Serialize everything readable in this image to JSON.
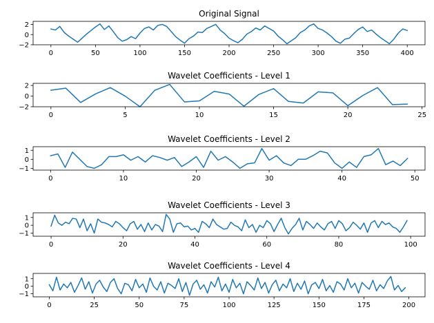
{
  "chart_data": [
    {
      "type": "line",
      "title": "Original Signal",
      "xlabel": "",
      "ylabel": "",
      "xlim": [
        -20,
        420
      ],
      "ylim": [
        -2,
        2.6
      ],
      "xticks": [
        0,
        50,
        100,
        150,
        200,
        250,
        300,
        350,
        400
      ],
      "yticks": [
        -2,
        0,
        2
      ],
      "grid": false,
      "series": [
        {
          "color": "#1f77b4",
          "x": [
            0,
            5,
            10,
            15,
            20,
            25,
            30,
            35,
            40,
            45,
            50,
            55,
            60,
            65,
            70,
            75,
            80,
            85,
            90,
            95,
            100,
            105,
            110,
            115,
            120,
            125,
            130,
            135,
            140,
            145,
            150,
            155,
            160,
            165,
            170,
            175,
            180,
            185,
            190,
            195,
            200,
            205,
            210,
            215,
            220,
            225,
            230,
            235,
            240,
            245,
            250,
            255,
            260,
            265,
            270,
            275,
            280,
            285,
            290,
            295,
            300,
            305,
            310,
            315,
            320,
            325,
            330,
            335,
            340,
            345,
            350,
            355,
            360,
            365,
            370,
            375,
            380,
            385,
            390,
            395,
            400
          ],
          "y": [
            1.1,
            0.9,
            1.6,
            0.4,
            -0.3,
            -0.9,
            -1.5,
            -0.7,
            0.1,
            0.8,
            1.5,
            2.1,
            1.0,
            1.7,
            0.6,
            -0.6,
            -1.3,
            -1.0,
            -0.4,
            -0.8,
            0.3,
            1.2,
            1.5,
            0.9,
            1.8,
            2.0,
            1.6,
            0.6,
            -0.4,
            -1.1,
            -1.7,
            -0.8,
            -0.3,
            0.5,
            0.4,
            1.2,
            1.6,
            2.0,
            0.9,
            0.2,
            -0.7,
            -1.2,
            -1.6,
            -0.9,
            0.1,
            0.6,
            1.3,
            0.9,
            1.7,
            1.2,
            0.7,
            -0.3,
            -1.0,
            -1.8,
            -1.2,
            -0.6,
            0.4,
            0.9,
            1.7,
            2.1,
            1.2,
            0.9,
            0.3,
            -0.4,
            -1.3,
            -1.7,
            -0.9,
            -0.7,
            0.2,
            1.0,
            1.5,
            0.6,
            0.9,
            0.1,
            -0.6,
            -1.2,
            -1.8,
            -0.9,
            0.3,
            1.1,
            0.8
          ]
        }
      ]
    },
    {
      "type": "line",
      "title": "Wavelet Coefficients - Level 1",
      "xlabel": "",
      "ylabel": "",
      "xlim": [
        -1.2,
        25.2
      ],
      "ylim": [
        -2,
        2.4
      ],
      "xticks": [
        0,
        5,
        10,
        15,
        20,
        25
      ],
      "yticks": [
        -2,
        0,
        2
      ],
      "grid": false,
      "series": [
        {
          "color": "#1f77b4",
          "x": [
            0,
            1,
            2,
            3,
            4,
            5,
            6,
            7,
            8,
            9,
            10,
            11,
            12,
            13,
            14,
            15,
            16,
            17,
            18,
            19,
            20,
            21,
            22,
            23,
            24
          ],
          "y": [
            1.1,
            1.5,
            -1.2,
            0.4,
            1.6,
            0.0,
            -2.0,
            1.1,
            2.2,
            -1.1,
            -0.9,
            0.9,
            0.4,
            -1.9,
            0.3,
            1.4,
            -1.0,
            -1.3,
            0.8,
            0.6,
            -1.8,
            0.1,
            1.6,
            -1.6,
            -1.5
          ]
        }
      ]
    },
    {
      "type": "line",
      "title": "Wavelet Coefficients - Level 2",
      "xlabel": "",
      "ylabel": "",
      "xlim": [
        -2.4,
        51.4
      ],
      "ylim": [
        -1.2,
        1.4
      ],
      "xticks": [
        0,
        10,
        20,
        30,
        40,
        50
      ],
      "yticks": [
        -1,
        0,
        1
      ],
      "grid": false,
      "series": [
        {
          "color": "#1f77b4",
          "x": [
            0,
            1,
            2,
            3,
            4,
            5,
            6,
            7,
            8,
            9,
            10,
            11,
            12,
            13,
            14,
            15,
            16,
            17,
            18,
            19,
            20,
            21,
            22,
            23,
            24,
            25,
            26,
            27,
            28,
            29,
            30,
            31,
            32,
            33,
            34,
            35,
            36,
            37,
            38,
            39,
            40,
            41,
            42,
            43,
            44,
            45,
            46,
            47,
            48,
            49
          ],
          "y": [
            0.4,
            0.6,
            -0.9,
            0.8,
            0.0,
            -0.8,
            -1.0,
            -0.6,
            0.3,
            0.3,
            0.5,
            -0.1,
            0.3,
            -0.3,
            0.4,
            0.2,
            -0.1,
            0.2,
            -0.8,
            -0.3,
            0.3,
            -0.9,
            0.9,
            -0.1,
            0.3,
            -0.3,
            -1.0,
            -0.5,
            -0.4,
            1.2,
            -0.1,
            0.4,
            -0.4,
            -0.7,
            0.0,
            0.0,
            0.4,
            0.9,
            0.7,
            -0.4,
            -1.0,
            -0.3,
            -0.9,
            0.3,
            0.5,
            1.2,
            -0.6,
            -0.2,
            -0.7,
            0.1
          ]
        }
      ]
    },
    {
      "type": "line",
      "title": "Wavelet Coefficients - Level 3",
      "xlabel": "",
      "ylabel": "",
      "xlim": [
        -5,
        104
      ],
      "ylim": [
        -1.4,
        1.6
      ],
      "xticks": [
        0,
        20,
        40,
        60,
        80,
        100
      ],
      "yticks": [
        -1,
        0,
        1
      ],
      "grid": false,
      "series": [
        {
          "color": "#1f77b4",
          "x": [
            0,
            1,
            2,
            3,
            4,
            5,
            6,
            7,
            8,
            9,
            10,
            11,
            12,
            13,
            14,
            15,
            16,
            17,
            18,
            19,
            20,
            21,
            22,
            23,
            24,
            25,
            26,
            27,
            28,
            29,
            30,
            31,
            32,
            33,
            34,
            35,
            36,
            37,
            38,
            39,
            40,
            41,
            42,
            43,
            44,
            45,
            46,
            47,
            48,
            49,
            50,
            51,
            52,
            53,
            54,
            55,
            56,
            57,
            58,
            59,
            60,
            61,
            62,
            63,
            64,
            65,
            66,
            67,
            68,
            69,
            70,
            71,
            72,
            73,
            74,
            75,
            76,
            77,
            78,
            79,
            80,
            81,
            82,
            83,
            84,
            85,
            86,
            87,
            88,
            89,
            90,
            91,
            92,
            93,
            94,
            95,
            96,
            97,
            98,
            99
          ],
          "y": [
            -0.1,
            1.3,
            0.3,
            0.0,
            0.4,
            0.2,
            0.9,
            0.8,
            -0.3,
            0.8,
            -0.7,
            0.2,
            -1.0,
            0.8,
            0.4,
            0.3,
            0.1,
            -0.2,
            0.5,
            0.2,
            -0.3,
            -0.7,
            0.2,
            0.5,
            -0.5,
            0.1,
            -0.8,
            0.3,
            -0.6,
            0.1,
            -0.1,
            -0.8,
            1.4,
            0.8,
            -0.9,
            0.2,
            0.3,
            -0.2,
            -0.1,
            -0.6,
            -0.4,
            -0.9,
            0.5,
            0.2,
            -0.3,
            0.8,
            0.1,
            -0.2,
            -0.5,
            -0.4,
            0.4,
            0.0,
            -0.2,
            -0.7,
            0.7,
            -0.3,
            0.1,
            -0.9,
            0.0,
            -0.3,
            0.6,
            0.2,
            -0.8,
            0.1,
            0.9,
            -0.3,
            -1.1,
            -0.4,
            0.1,
            0.9,
            -0.6,
            0.5,
            0.1,
            -0.4,
            0.3,
            -0.2,
            -0.6,
            0.2,
            0.5,
            -0.4,
            0.6,
            0.2,
            -0.7,
            -0.3,
            0.4,
            0.0,
            -0.5,
            0.3,
            -0.9,
            0.3,
            0.6,
            -0.3,
            0.5,
            0.1,
            0.3,
            -0.2,
            -0.4,
            -0.9,
            -0.2,
            0.6
          ]
        }
      ]
    },
    {
      "type": "line",
      "title": "Wavelet Coefficients - Level 4",
      "xlabel": "",
      "ylabel": "",
      "xlim": [
        -9,
        209
      ],
      "ylim": [
        -1.4,
        1.7
      ],
      "xticks": [
        0,
        25,
        50,
        75,
        100,
        125,
        150,
        175,
        200
      ],
      "yticks": [
        -1,
        0,
        1
      ],
      "grid": false,
      "series": [
        {
          "color": "#1f77b4",
          "x": [
            0,
            2,
            4,
            6,
            8,
            10,
            12,
            14,
            16,
            18,
            20,
            22,
            24,
            26,
            28,
            30,
            32,
            34,
            36,
            38,
            40,
            42,
            44,
            46,
            48,
            50,
            52,
            54,
            56,
            58,
            60,
            62,
            64,
            66,
            68,
            70,
            72,
            74,
            76,
            78,
            80,
            82,
            84,
            86,
            88,
            90,
            92,
            94,
            96,
            98,
            100,
            102,
            104,
            106,
            108,
            110,
            112,
            114,
            116,
            118,
            120,
            122,
            124,
            126,
            128,
            130,
            132,
            134,
            136,
            138,
            140,
            142,
            144,
            146,
            148,
            150,
            152,
            154,
            156,
            158,
            160,
            162,
            164,
            166,
            168,
            170,
            172,
            174,
            176,
            178,
            180,
            182,
            184,
            186,
            188,
            190,
            192,
            194,
            196,
            198
          ],
          "y": [
            0.2,
            -0.6,
            1.2,
            -0.5,
            0.3,
            -0.2,
            0.5,
            -0.8,
            0.1,
            1.1,
            -0.4,
            0.6,
            -0.9,
            0.3,
            0.8,
            -0.1,
            -0.7,
            0.5,
            1.0,
            -0.3,
            -1.0,
            0.4,
            0.2,
            -0.6,
            0.9,
            -0.2,
            0.3,
            -0.8,
            1.1,
            0.0,
            -0.5,
            0.6,
            -0.9,
            0.4,
            0.1,
            -0.3,
            1.0,
            -0.7,
            0.5,
            -1.2,
            0.3,
            0.8,
            -0.4,
            0.2,
            -0.9,
            0.6,
            -0.1,
            1.2,
            -0.6,
            0.3,
            -0.8,
            0.9,
            -0.2,
            0.4,
            -1.0,
            0.6,
            0.1,
            -0.5,
            1.1,
            -0.3,
            0.5,
            -0.9,
            0.2,
            0.8,
            -0.6,
            0.3,
            -0.2,
            1.0,
            -0.7,
            0.4,
            -0.4,
            0.7,
            -1.0,
            0.2,
            0.5,
            -0.3,
            0.9,
            -0.6,
            0.1,
            -0.8,
            0.6,
            0.3,
            -0.5,
            1.0,
            -0.2,
            0.4,
            -0.9,
            0.5,
            0.0,
            -0.4,
            0.8,
            -0.6,
            0.2,
            -0.3,
            0.7,
            1.3,
            -0.5,
            0.1,
            -0.7,
            -0.2
          ]
        }
      ]
    }
  ]
}
